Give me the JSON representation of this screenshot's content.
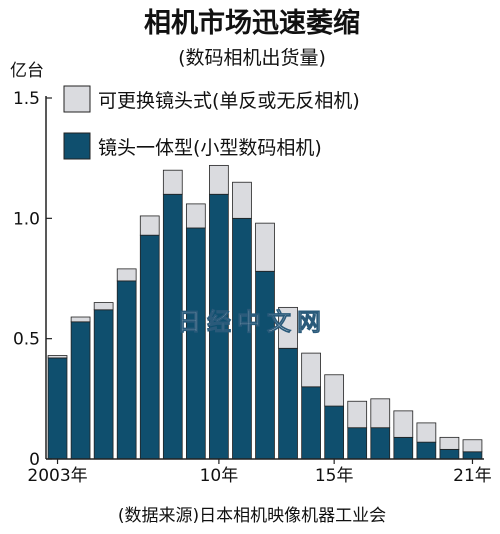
{
  "chart_data": {
    "type": "bar",
    "stacked": true,
    "title": "相机市场迅速萎缩",
    "subtitle": "(数码相机出货量)",
    "ylabel": "亿台",
    "ylim": [
      0,
      1.5
    ],
    "yticks": [
      0,
      0.5,
      1.0,
      1.5
    ],
    "ytick_labels": [
      "0",
      "0.5",
      "1.0",
      "1.5"
    ],
    "grid": false,
    "legend_position": "top-left",
    "categories": [
      "2003",
      "2004",
      "2005",
      "2006",
      "2007",
      "2008",
      "2009",
      "2010",
      "2011",
      "2012",
      "2013",
      "2014",
      "2015",
      "2016",
      "2017",
      "2018",
      "2019",
      "2020",
      "2021"
    ],
    "xtick_labels": [
      {
        "index": 0,
        "label": "2003年"
      },
      {
        "index": 7,
        "label": "10年"
      },
      {
        "index": 12,
        "label": "15年"
      },
      {
        "index": 18,
        "label": "21年"
      }
    ],
    "series": [
      {
        "name": "镜头一体型(小型数码相机)",
        "color": "#0f4f6e",
        "values": [
          0.42,
          0.57,
          0.62,
          0.74,
          0.93,
          1.1,
          0.96,
          1.1,
          1.0,
          0.78,
          0.46,
          0.3,
          0.22,
          0.13,
          0.13,
          0.09,
          0.07,
          0.04,
          0.03
        ]
      },
      {
        "name": "可更换镜头式(单反或无反相机)",
        "color": "#dadbdf",
        "values": [
          0.01,
          0.02,
          0.03,
          0.05,
          0.08,
          0.1,
          0.1,
          0.12,
          0.15,
          0.2,
          0.17,
          0.14,
          0.13,
          0.11,
          0.12,
          0.11,
          0.08,
          0.05,
          0.05
        ]
      }
    ],
    "source": "(数据来源)日本相机映像机器工业会",
    "watermark": "日经中文网"
  }
}
